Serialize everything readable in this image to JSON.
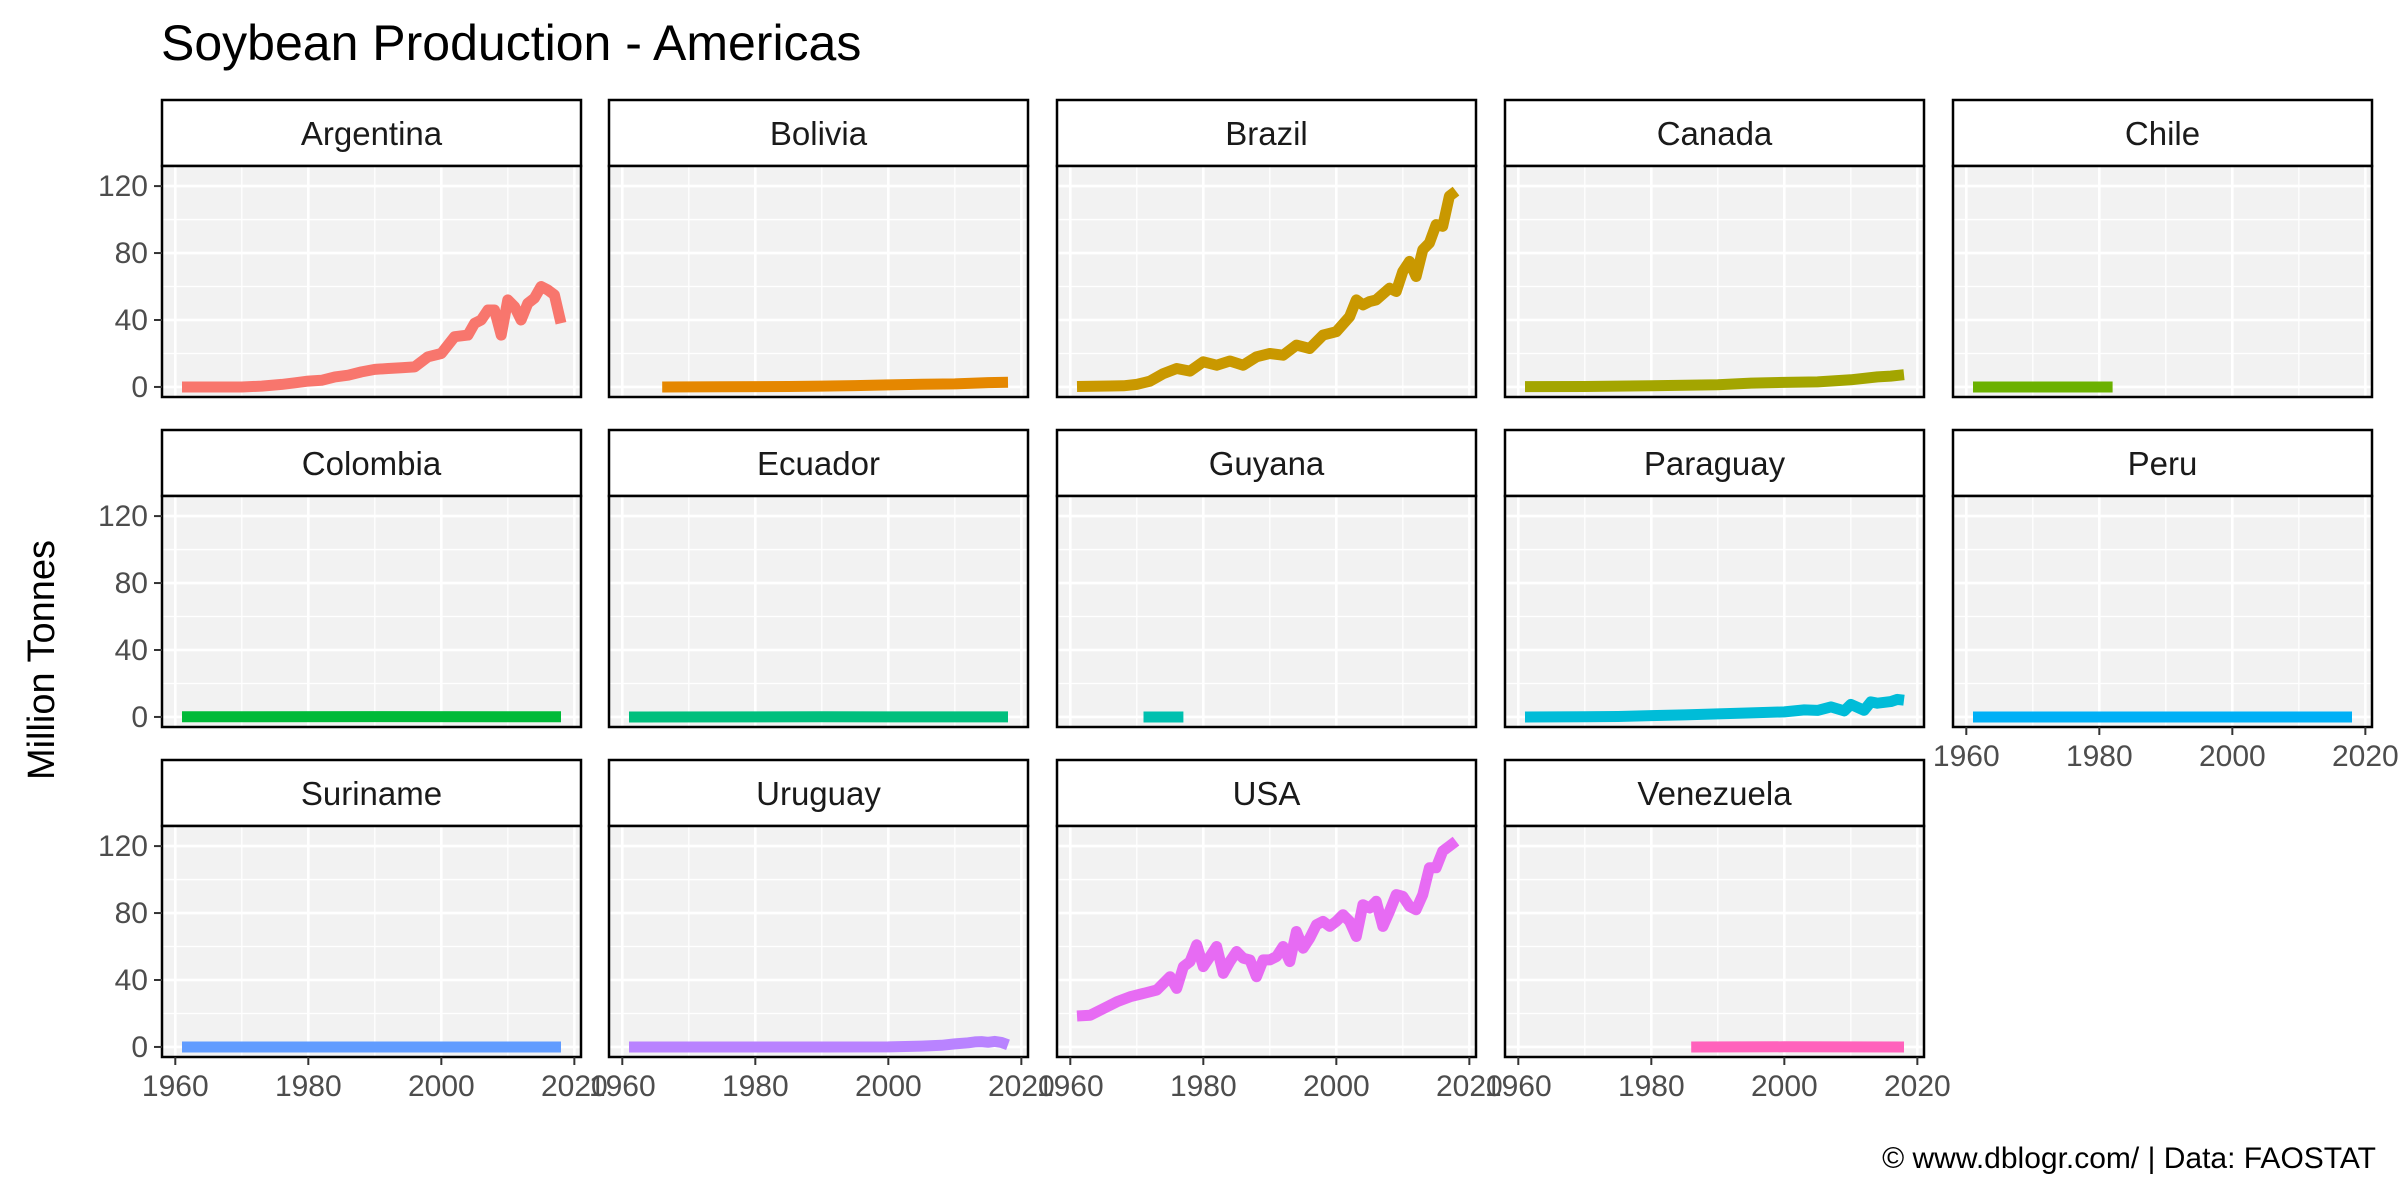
{
  "chart_data": {
    "type": "line",
    "title": "Soybean Production - Americas",
    "xlabel": "",
    "ylabel": "Million Tonnes",
    "caption": "© www.dblogr.com/ | Data: FAOSTAT",
    "xlim": [
      1958,
      2021
    ],
    "ylim": [
      -6,
      132
    ],
    "x_ticks": [
      1960,
      1980,
      2000,
      2020
    ],
    "y_ticks": [
      0,
      40,
      80,
      120
    ],
    "grid": true,
    "legend": "none",
    "facet_layout": {
      "columns": 5,
      "rows": 3
    },
    "panels": [
      {
        "name": "Argentina",
        "color": "#F8766D",
        "x": [
          1961,
          1965,
          1970,
          1973,
          1976,
          1978,
          1980,
          1982,
          1984,
          1986,
          1988,
          1990,
          1992,
          1994,
          1996,
          1998,
          2000,
          2002,
          2004,
          2005,
          2006,
          2007,
          2008,
          2009,
          2010,
          2011,
          2012,
          2013,
          2014,
          2015,
          2016,
          2017,
          2018
        ],
        "y": [
          0,
          0,
          0,
          0.5,
          1.5,
          2.5,
          3.5,
          4,
          6,
          7,
          9,
          10.5,
          11,
          11.5,
          12,
          18,
          20,
          30,
          31,
          38,
          40,
          46,
          46,
          31,
          52,
          48,
          40,
          50,
          53,
          60,
          58,
          55,
          38
        ]
      },
      {
        "name": "Bolivia",
        "color": "#E58700",
        "x": [
          1966,
          1975,
          1985,
          1990,
          1995,
          2000,
          2005,
          2010,
          2015,
          2018
        ],
        "y": [
          0,
          0.1,
          0.3,
          0.5,
          0.8,
          1.2,
          1.6,
          1.8,
          2.6,
          2.8
        ]
      },
      {
        "name": "Brazil",
        "color": "#C99800",
        "x": [
          1961,
          1966,
          1968,
          1970,
          1972,
          1974,
          1976,
          1978,
          1980,
          1982,
          1984,
          1986,
          1988,
          1990,
          1992,
          1994,
          1996,
          1998,
          2000,
          2002,
          2003,
          2004,
          2005,
          2006,
          2008,
          2009,
          2010,
          2011,
          2012,
          2013,
          2014,
          2015,
          2016,
          2017,
          2018
        ],
        "y": [
          0.3,
          0.6,
          0.7,
          1.5,
          3.5,
          8,
          11,
          9.5,
          15,
          13,
          15.5,
          13,
          18,
          20,
          19,
          25,
          23,
          31,
          33,
          42,
          52,
          49,
          51,
          52,
          59,
          57,
          69,
          75,
          66,
          82,
          86,
          97,
          96,
          114,
          117
        ]
      },
      {
        "name": "Canada",
        "color": "#A3A500",
        "x": [
          1961,
          1970,
          1980,
          1990,
          1995,
          2000,
          2005,
          2010,
          2014,
          2016,
          2018
        ],
        "y": [
          0.2,
          0.3,
          0.7,
          1.3,
          2.3,
          2.7,
          3,
          4.3,
          6,
          6.5,
          7.3
        ]
      },
      {
        "name": "Chile",
        "color": "#6BB100",
        "x": [
          1961,
          1982
        ],
        "y": [
          0,
          0
        ]
      },
      {
        "name": "Colombia",
        "color": "#00BA38",
        "x": [
          1961,
          1990,
          2018
        ],
        "y": [
          0.1,
          0.2,
          0.1
        ]
      },
      {
        "name": "Ecuador",
        "color": "#00BF7D",
        "x": [
          1961,
          1990,
          2018
        ],
        "y": [
          0,
          0.1,
          0.05
        ]
      },
      {
        "name": "Guyana",
        "color": "#00C0AF",
        "x": [
          1971,
          1977
        ],
        "y": [
          0,
          0
        ]
      },
      {
        "name": "Paraguay",
        "color": "#00BCD8",
        "x": [
          1961,
          1970,
          1975,
          1980,
          1985,
          1990,
          1995,
          2000,
          2003,
          2005,
          2007,
          2009,
          2010,
          2012,
          2013,
          2014,
          2016,
          2017,
          2018
        ],
        "y": [
          0,
          0.1,
          0.3,
          0.8,
          1.2,
          1.8,
          2.4,
          3,
          4.2,
          3.9,
          6,
          3.6,
          7.5,
          4,
          9,
          8.2,
          9.2,
          10.5,
          10
        ]
      },
      {
        "name": "Peru",
        "color": "#00B0F6",
        "x": [
          1961,
          2018
        ],
        "y": [
          0,
          0
        ]
      },
      {
        "name": "Suriname",
        "color": "#619CFF",
        "x": [
          1961,
          2018
        ],
        "y": [
          0,
          0
        ]
      },
      {
        "name": "Uruguay",
        "color": "#B983FF",
        "x": [
          1961,
          1990,
          2000,
          2005,
          2008,
          2010,
          2012,
          2013,
          2014,
          2015,
          2016,
          2017,
          2018
        ],
        "y": [
          0,
          0,
          0.01,
          0.5,
          1,
          1.8,
          2.5,
          3,
          3.2,
          2.8,
          3.3,
          2.7,
          1.3
        ]
      },
      {
        "name": "USA",
        "color": "#E76BF3",
        "x": [
          1961,
          1963,
          1965,
          1967,
          1969,
          1971,
          1973,
          1975,
          1976,
          1977,
          1978,
          1979,
          1980,
          1981,
          1982,
          1983,
          1984,
          1985,
          1986,
          1987,
          1988,
          1989,
          1990,
          1991,
          1992,
          1993,
          1994,
          1995,
          1996,
          1997,
          1998,
          1999,
          2000,
          2001,
          2002,
          2003,
          2004,
          2005,
          2006,
          2007,
          2008,
          2009,
          2010,
          2011,
          2012,
          2013,
          2014,
          2015,
          2016,
          2017,
          2018
        ],
        "y": [
          18.5,
          19,
          23,
          27,
          30,
          32,
          34,
          42,
          35,
          48,
          51,
          61,
          48,
          54,
          60,
          44,
          51,
          57,
          53,
          52,
          42,
          52,
          52,
          54,
          60,
          51,
          69,
          59,
          65,
          73,
          75,
          72,
          75,
          79,
          75,
          66,
          85,
          83,
          87,
          72,
          81,
          91,
          90,
          84,
          82,
          91,
          107,
          107,
          117,
          120,
          123
        ]
      },
      {
        "name": "Venezuela",
        "color": "#FF62BC",
        "x": [
          1986,
          2000,
          2018
        ],
        "y": [
          0,
          0.1,
          0
        ]
      }
    ]
  }
}
